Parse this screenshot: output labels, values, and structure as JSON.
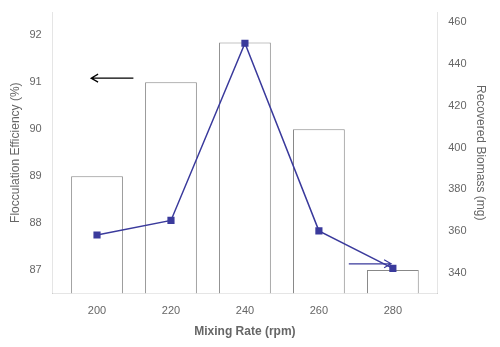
{
  "chart_data": {
    "type": "bar",
    "xlabel": "Mixing Rate (rpm)",
    "ylabel": "Flocculation Efficiency (%)",
    "y2label": "Recovered Biomass (mg)",
    "x": [
      200,
      220,
      240,
      260,
      280
    ],
    "series": [
      {
        "type": "bar",
        "color": "#888888",
        "values": [
          89.0,
          91.0,
          91.85,
          90.0,
          87.0
        ]
      },
      {
        "type": "line",
        "axis": "y2",
        "color": "#3a3a9c",
        "marker": "square",
        "line_style": "solid",
        "values": [
          358,
          365,
          450,
          360,
          342
        ]
      }
    ],
    "xlim": [
      188,
      292
    ],
    "xticks": [
      200,
      220,
      240,
      260,
      280
    ],
    "ylim": [
      86.5,
      92.5
    ],
    "yticks": [
      87,
      88,
      89,
      90,
      91,
      92
    ],
    "y2lim": [
      330,
      465
    ],
    "y2ticks": [
      340,
      360,
      380,
      400,
      420,
      440,
      460
    ],
    "grid": false
  }
}
